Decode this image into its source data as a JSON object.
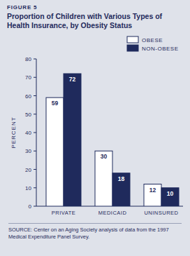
{
  "chart_data": {
    "type": "bar",
    "figure_label": "FIGURE 5",
    "title": "Proportion of Children with Various Types of Health Insurance, by Obesity Status",
    "y_label": "PERCENT",
    "source": "SOURCE: Center on an Aging Society analysis of data from the 1997 Medical Expenditure Panel Survey.",
    "categories": [
      "PRIVATE",
      "MEDICAID",
      "UNINSURED"
    ],
    "series": [
      {
        "name": "OBESE",
        "color": "#ffffff",
        "values": [
          59,
          30,
          12
        ]
      },
      {
        "name": "NON-OBESE",
        "color": "#1f2a5c",
        "values": [
          72,
          18,
          10
        ]
      }
    ],
    "ylim": [
      0,
      80
    ],
    "yticks": [
      0,
      10,
      20,
      30,
      40,
      50,
      60,
      70,
      80
    ],
    "grid": false,
    "legend": "top-right",
    "data_labels": true
  }
}
